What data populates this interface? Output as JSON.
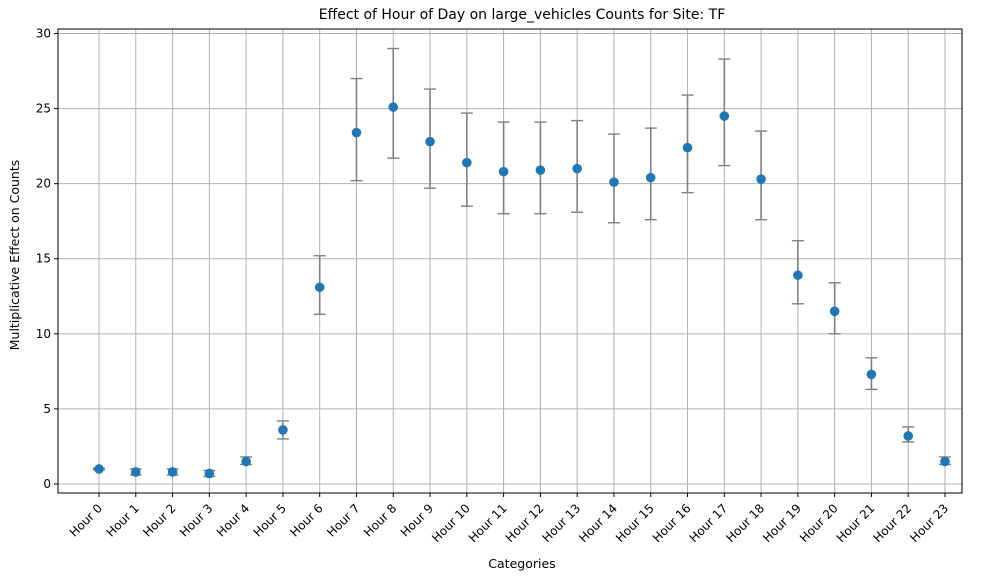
{
  "chart_data": {
    "type": "scatter",
    "title": "Effect of Hour of Day on large_vehicles Counts for Site: TF",
    "xlabel": "Categories",
    "ylabel": "Multiplicative Effect on Counts",
    "ylim": [
      -0.6,
      30.3
    ],
    "yticks": [
      0,
      5,
      10,
      15,
      20,
      25,
      30
    ],
    "grid": true,
    "categories": [
      "Hour 0",
      "Hour 1",
      "Hour 2",
      "Hour 3",
      "Hour 4",
      "Hour 5",
      "Hour 6",
      "Hour 7",
      "Hour 8",
      "Hour 9",
      "Hour 10",
      "Hour 11",
      "Hour 12",
      "Hour 13",
      "Hour 14",
      "Hour 15",
      "Hour 16",
      "Hour 17",
      "Hour 18",
      "Hour 19",
      "Hour 20",
      "Hour 21",
      "Hour 22",
      "Hour 23"
    ],
    "values": [
      1.0,
      0.8,
      0.8,
      0.7,
      1.5,
      3.6,
      13.1,
      23.4,
      25.1,
      22.8,
      21.4,
      20.8,
      20.9,
      21.0,
      20.1,
      20.4,
      22.4,
      24.5,
      20.3,
      13.9,
      11.5,
      7.3,
      3.2,
      1.5
    ],
    "lower": [
      0.95,
      0.6,
      0.6,
      0.5,
      1.3,
      3.0,
      11.3,
      20.2,
      21.7,
      19.7,
      18.5,
      18.0,
      18.0,
      18.1,
      17.4,
      17.6,
      19.4,
      21.2,
      17.6,
      12.0,
      10.0,
      6.3,
      2.8,
      1.3
    ],
    "upper": [
      1.05,
      1.0,
      1.0,
      0.9,
      1.8,
      4.2,
      15.2,
      27.0,
      29.0,
      26.3,
      24.7,
      24.1,
      24.1,
      24.2,
      23.3,
      23.7,
      25.9,
      28.3,
      23.5,
      16.2,
      13.4,
      8.4,
      3.8,
      1.8
    ],
    "colors": {
      "point": "#1f77b4",
      "errorbar": "#808080",
      "grid": "#b0b0b0"
    }
  }
}
